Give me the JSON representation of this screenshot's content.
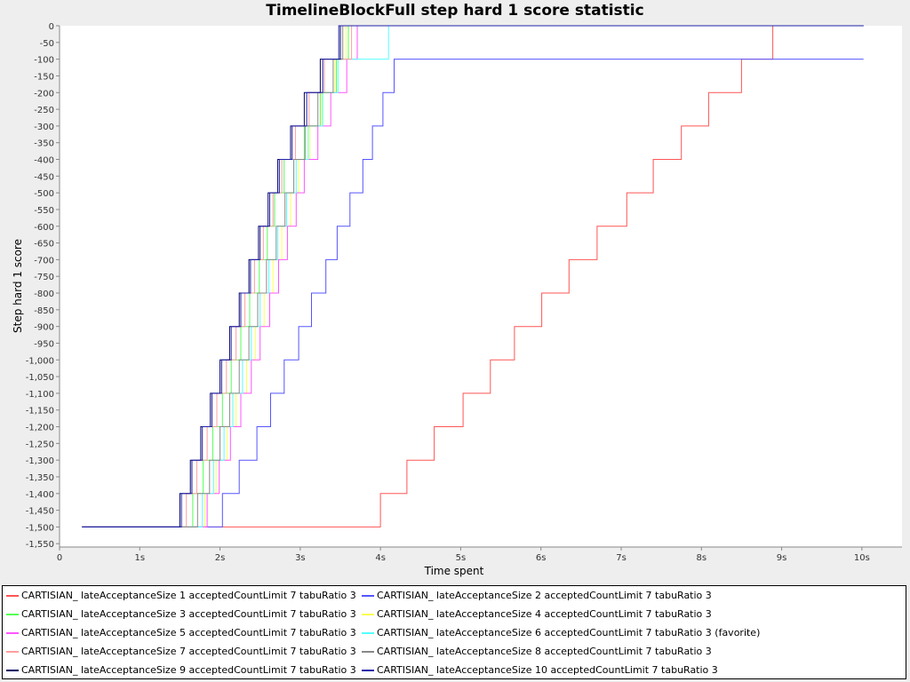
{
  "chart_data": {
    "type": "line",
    "title": "TimelineBlockFull step hard 1 score statistic",
    "xlabel": "Time spent",
    "ylabel": "Step hard 1 score",
    "xlim": [
      0,
      10.5
    ],
    "ylim": [
      -1560,
      0
    ],
    "x_ticks": [
      0,
      1,
      2,
      3,
      4,
      5,
      6,
      7,
      8,
      9,
      10
    ],
    "x_tick_labels": [
      "0",
      "1s",
      "2s",
      "3s",
      "4s",
      "5s",
      "6s",
      "7s",
      "8s",
      "9s",
      "10s"
    ],
    "y_ticks": [
      0,
      -50,
      -100,
      -150,
      -200,
      -250,
      -300,
      -350,
      -400,
      -450,
      -500,
      -550,
      -600,
      -650,
      -700,
      -750,
      -800,
      -850,
      -900,
      -950,
      -1000,
      -1050,
      -1100,
      -1150,
      -1200,
      -1250,
      -1300,
      -1350,
      -1400,
      -1450,
      -1500,
      -1550
    ],
    "y_tick_labels": [
      "0",
      "-50",
      "-100",
      "-150",
      "-200",
      "-250",
      "-300",
      "-350",
      "-400",
      "-450",
      "-500",
      "-550",
      "-600",
      "-650",
      "-700",
      "-750",
      "-800",
      "-850",
      "-900",
      "-950",
      "-1,000",
      "-1,050",
      "-1,100",
      "-1,150",
      "-1,200",
      "-1,250",
      "-1,300",
      "-1,350",
      "-1,400",
      "-1,450",
      "-1,500",
      "-1,550"
    ],
    "grid": false,
    "legend_position": "bottom",
    "step_levels": [
      -1500,
      -1400,
      -1300,
      -1200,
      -1100,
      -1000,
      -900,
      -800,
      -700,
      -600,
      -500,
      -400,
      -300,
      -200,
      -100,
      0
    ],
    "series": [
      {
        "name": "CARTISIAN_ lateAcceptanceSize 1 acceptedCountLimit 7 tabuRatio 3",
        "color": "#ff5555",
        "start": 0.28,
        "end": 10.02,
        "x_steps": [
          4.0,
          4.33,
          4.67,
          5.03,
          5.37,
          5.67,
          6.01,
          6.35,
          6.7,
          7.07,
          7.4,
          7.75,
          8.09,
          8.5,
          8.89
        ]
      },
      {
        "name": "CARTISIAN_ lateAcceptanceSize 2 acceptedCountLimit 7 tabuRatio 3",
        "color": "#5555ff",
        "start": 0.28,
        "end": 10.02,
        "x_steps": [
          2.03,
          2.24,
          2.46,
          2.63,
          2.8,
          2.98,
          3.14,
          3.32,
          3.46,
          3.62,
          3.78,
          3.9,
          4.03,
          4.17
        ]
      },
      {
        "name": "CARTISIAN_ lateAcceptanceSize 3 acceptedCountLimit 7 tabuRatio 3",
        "color": "#55ff55",
        "start": 0.28,
        "end": 10.02,
        "x_steps": [
          1.66,
          1.79,
          1.91,
          2.03,
          2.14,
          2.26,
          2.37,
          2.49,
          2.59,
          2.68,
          2.8,
          3.05,
          3.25,
          3.45,
          3.6
        ]
      },
      {
        "name": "CARTISIAN_ lateAcceptanceSize 4 acceptedCountLimit 7 tabuRatio 3",
        "color": "#ffff55",
        "start": 0.28,
        "end": 10.02,
        "x_steps": [
          1.81,
          1.95,
          2.09,
          2.2,
          2.33,
          2.44,
          2.55,
          2.66,
          2.77,
          2.88,
          2.98,
          3.12,
          3.27,
          3.43,
          3.57
        ]
      },
      {
        "name": "CARTISIAN_ lateAcceptanceSize 5 acceptedCountLimit 7 tabuRatio 3",
        "color": "#ff55ff",
        "start": 0.28,
        "end": 10.02,
        "x_steps": [
          1.84,
          1.99,
          2.13,
          2.26,
          2.39,
          2.5,
          2.62,
          2.73,
          2.84,
          2.95,
          3.05,
          3.22,
          3.38,
          3.58,
          3.71
        ]
      },
      {
        "name": "CARTISIAN_ lateAcceptanceSize 6 acceptedCountLimit 7 tabuRatio 3 (favorite)",
        "color": "#55ffff",
        "start": 0.28,
        "end": 10.02,
        "x_steps": [
          1.78,
          1.92,
          2.05,
          2.16,
          2.28,
          2.39,
          2.5,
          2.61,
          2.72,
          2.83,
          2.95,
          3.1,
          3.28,
          3.47,
          4.1
        ]
      },
      {
        "name": "CARTISIAN_ lateAcceptanceSize 7 acceptedCountLimit 7 tabuRatio 3",
        "color": "#ff9f9f",
        "start": 0.28,
        "end": 10.02,
        "x_steps": [
          1.58,
          1.71,
          1.84,
          1.96,
          2.08,
          2.2,
          2.31,
          2.43,
          2.54,
          2.66,
          2.77,
          2.94,
          3.11,
          3.3,
          3.64
        ]
      },
      {
        "name": "CARTISIAN_ lateAcceptanceSize 8 acceptedCountLimit 7 tabuRatio 3",
        "color": "#888888",
        "start": 0.28,
        "end": 10.02,
        "x_steps": [
          1.72,
          1.87,
          2.0,
          2.12,
          2.24,
          2.36,
          2.47,
          2.58,
          2.7,
          2.81,
          2.92,
          3.06,
          3.22,
          3.41,
          3.53
        ]
      },
      {
        "name": "CARTISIAN_ lateAcceptanceSize 9 acceptedCountLimit 7 tabuRatio 3",
        "color": "#000066",
        "start": 0.28,
        "end": 10.02,
        "x_steps": [
          1.5,
          1.63,
          1.76,
          1.88,
          2.0,
          2.12,
          2.24,
          2.36,
          2.48,
          2.6,
          2.72,
          2.88,
          3.05,
          3.25,
          3.5
        ]
      },
      {
        "name": "CARTISIAN_ lateAcceptanceSize 10 acceptedCountLimit 7 tabuRatio 3",
        "color": "#2222aa",
        "start": 0.28,
        "end": 10.02,
        "x_steps": [
          1.52,
          1.65,
          1.78,
          1.9,
          2.02,
          2.14,
          2.26,
          2.38,
          2.5,
          2.62,
          2.74,
          2.9,
          3.08,
          3.28,
          3.48
        ]
      }
    ]
  }
}
